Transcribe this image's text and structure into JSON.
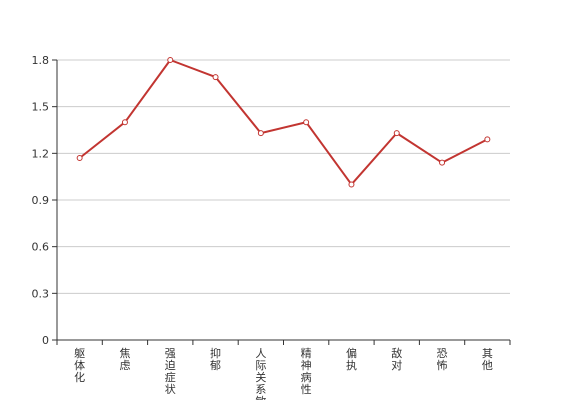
{
  "chart_data": {
    "type": "line",
    "title": "",
    "xlabel": "",
    "ylabel": "",
    "categories": [
      "躯体化",
      "焦虑",
      "强迫症状",
      "抑郁",
      "人际关系敏感",
      "精神病性",
      "偏执",
      "敌对",
      "恐怖",
      "其他"
    ],
    "series": [
      {
        "values": [
          1.17,
          1.4,
          1.8,
          1.69,
          1.33,
          1.4,
          1.0,
          1.33,
          1.14,
          1.29
        ]
      }
    ],
    "ylim": [
      0,
      1.8
    ],
    "yticks": [
      "0",
      "0.3",
      "0.6",
      "0.9",
      "1.2",
      "1.5",
      "1.8"
    ],
    "grid": true,
    "legend": "none",
    "colors": {
      "line": "#c23531",
      "grid": "#cccccc",
      "axis": "#333333"
    }
  }
}
